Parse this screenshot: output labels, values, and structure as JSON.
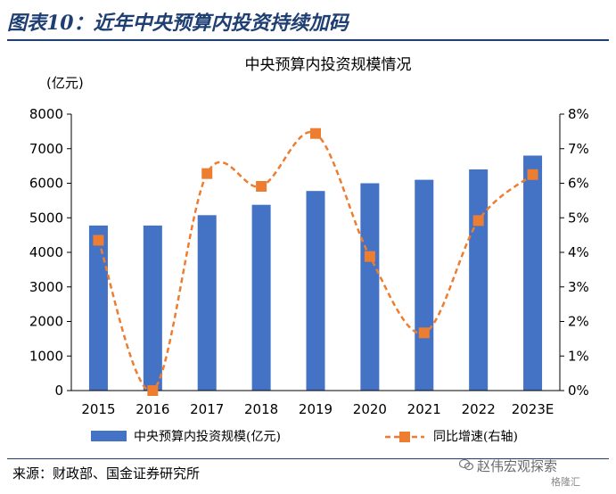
{
  "figure": {
    "title": "图表10：近年中央预算内投资持续加码",
    "source": "来源：财政部、国金证券研究所",
    "watermark_text": "赵伟宏观探索",
    "watermark_sub": "格隆汇"
  },
  "chart_data": {
    "type": "bar",
    "title": "中央预算内投资规模情况",
    "y_unit_label": "(亿元)",
    "categories": [
      "2015",
      "2016",
      "2017",
      "2018",
      "2019",
      "2020",
      "2021",
      "2022",
      "2023E"
    ],
    "series": [
      {
        "name": "中央预算内投资规模(亿元)",
        "type": "bar",
        "axis": "left",
        "values": [
          4776,
          4776,
          5076,
          5376,
          5776,
          6000,
          6100,
          6400,
          6800
        ]
      },
      {
        "name": "同比增速(右轴)",
        "type": "line",
        "axis": "right",
        "values": [
          4.35,
          0.0,
          6.28,
          5.91,
          7.44,
          3.88,
          1.67,
          4.92,
          6.25
        ]
      }
    ],
    "y_left": {
      "min": 0,
      "max": 8000,
      "step": 1000
    },
    "y_right": {
      "min": 0,
      "max": 8,
      "step": 1,
      "suffix": "%"
    },
    "grid": false,
    "legend_position": "bottom",
    "colors": {
      "bar": "#4472c4",
      "line": "#ed7d31"
    }
  }
}
